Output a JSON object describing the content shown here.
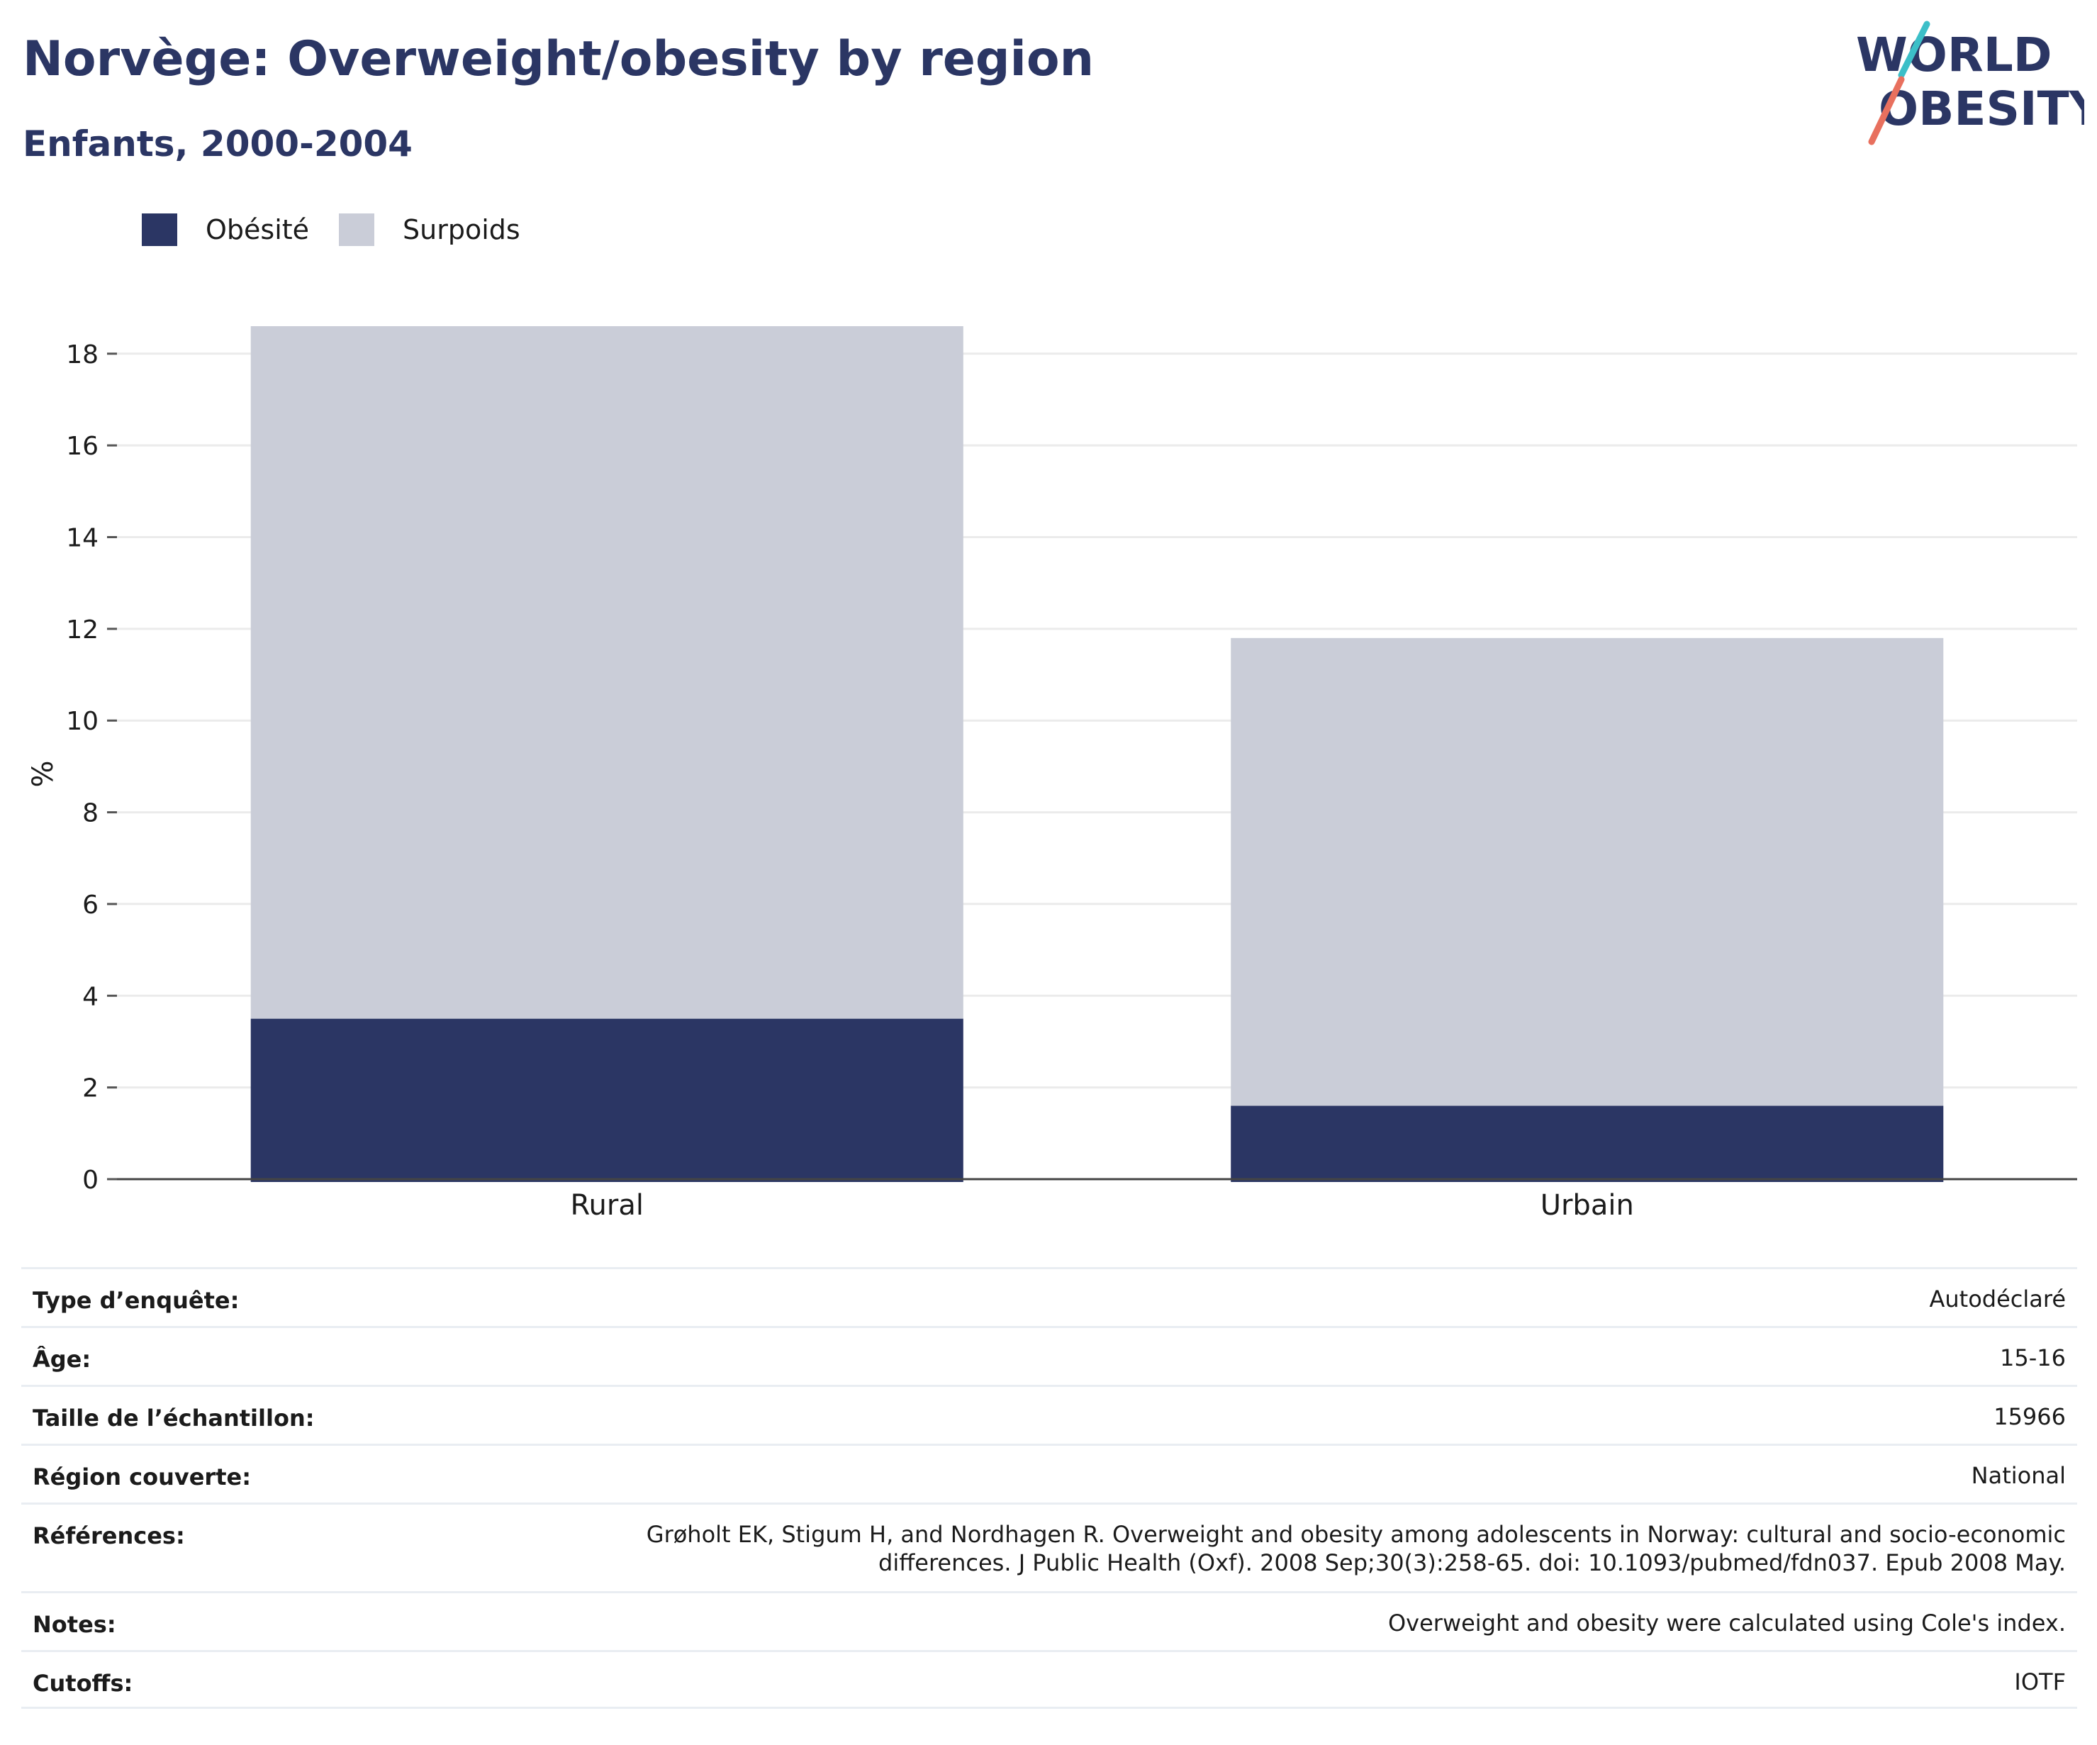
{
  "header": {
    "title": "Norvège: Overweight/obesity by region",
    "subtitle": "Enfants, 2000-2004"
  },
  "logo": {
    "line1": "WORLD",
    "line2": "OBESITY"
  },
  "legend": [
    {
      "label": "Obésité",
      "color": "#2b3664"
    },
    {
      "label": "Surpoids",
      "color": "#cacdd8"
    }
  ],
  "chart_data": {
    "type": "bar",
    "stacked": true,
    "categories": [
      "Rural",
      "Urbain"
    ],
    "series": [
      {
        "name": "Obésité",
        "color": "#2b3664",
        "values": [
          3.5,
          1.6
        ]
      },
      {
        "name": "Surpoids",
        "color": "#cacdd8",
        "values": [
          15.1,
          10.2
        ]
      }
    ],
    "ylabel": "%",
    "ylim": [
      0,
      18.6
    ],
    "yticks": [
      0,
      2,
      4,
      6,
      8,
      10,
      12,
      14,
      16,
      18
    ],
    "grid": true,
    "legend_position": "top-left"
  },
  "details": [
    {
      "label": "Type d’enquête:",
      "value": "Autodéclaré"
    },
    {
      "label": "Âge:",
      "value": "15-16"
    },
    {
      "label": "Taille de l’échantillon:",
      "value": "15966"
    },
    {
      "label": "Région couverte:",
      "value": "National"
    },
    {
      "label": "Références:",
      "value": "Grøholt EK, Stigum H, and Nordhagen R. Overweight and obesity among adolescents in Norway: cultural and socio-economic differences. J Public Health (Oxf). 2008 Sep;30(3):258-65. doi: 10.1093/pubmed/fdn037. Epub 2008 May."
    },
    {
      "label": "Notes:",
      "value": "Overweight and obesity were calculated using Cole's index."
    },
    {
      "label": "Cutoffs:",
      "value": "IOTF"
    }
  ]
}
